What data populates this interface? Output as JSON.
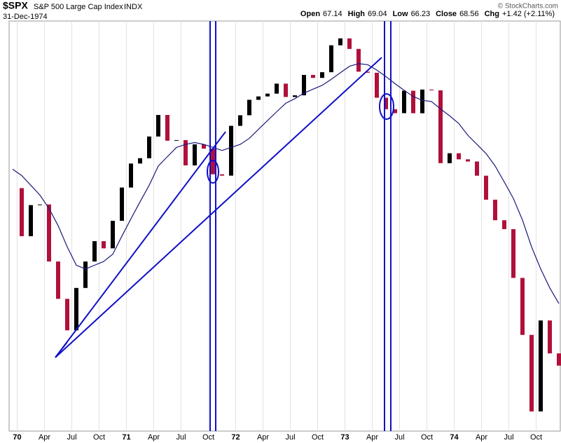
{
  "header": {
    "symbol": "$SPX",
    "name": "S&P 500 Large Cap Index",
    "exchange": "INDX",
    "date": "31-Dec-1974",
    "copyright": "© StockCharts.com",
    "quote": [
      {
        "label": "Open",
        "value": "67.14"
      },
      {
        "label": "High",
        "value": "69.04"
      },
      {
        "label": "Low",
        "value": "66.23"
      },
      {
        "label": "Close",
        "value": "68.56"
      },
      {
        "label": "Chg",
        "value": "+1.42 (+2.11%)"
      }
    ]
  },
  "chart_data": {
    "type": "candle",
    "log": true,
    "ylim": [
      61.5,
      121.5
    ],
    "grid": true,
    "categories": [
      null,
      "70",
      null,
      null,
      "Apr",
      null,
      null,
      "Jul",
      null,
      null,
      "Oct",
      null,
      null,
      "71",
      null,
      null,
      "Apr",
      null,
      null,
      "Jul",
      null,
      null,
      "Oct",
      null,
      null,
      "72",
      null,
      null,
      "Apr",
      null,
      null,
      "Jul",
      null,
      null,
      "Oct",
      null,
      null,
      "73",
      null,
      null,
      "Apr",
      null,
      null,
      "Jul",
      null,
      null,
      "Oct",
      null,
      null,
      "74",
      null,
      null,
      "Apr",
      null,
      null,
      "Jul",
      null,
      null,
      "Oct",
      null,
      null
    ],
    "series": [
      {
        "name": "SPX",
        "up_color": "#000000",
        "down_color": "#b0103a",
        "values": [
          92.06,
          85.0,
          89.5,
          89.6,
          81.5,
          76.6,
          72.7,
          78.0,
          81.5,
          84.3,
          83.3,
          87.2,
          92.15,
          95.9,
          96.75,
          100.3,
          103.95,
          99.6,
          99.7,
          95.6,
          99.0,
          98.3,
          94.2,
          93.99,
          102.09,
          103.9,
          106.6,
          107.2,
          107.7,
          109.5,
          107.1,
          107.4,
          111.1,
          110.55,
          111.6,
          116.7,
          118.05,
          116.0,
          111.7,
          111.5,
          106.97,
          104.95,
          104.26,
          108.22,
          104.25,
          108.43,
          108.29,
          95.96,
          97.55,
          96.57,
          96.22,
          93.98,
          90.31,
          87.28,
          86.0,
          79.31,
          72.15,
          63.54,
          73.9,
          69.97,
          68.56
        ]
      },
      {
        "name": "MA",
        "color": "#1a1a7a",
        "values": [
          95,
          94,
          92.5,
          91,
          89,
          86.5,
          83.5,
          81,
          80.5,
          81,
          81.5,
          82.5,
          85,
          87.5,
          90,
          92.5,
          95.5,
          97,
          98.5,
          99,
          99.3,
          99,
          98.5,
          98,
          98.5,
          99,
          100,
          101.5,
          103,
          104.5,
          106,
          106.8,
          107.8,
          108.5,
          109.2,
          110.3,
          111.5,
          112.7,
          113.2,
          113,
          112,
          110.8,
          109.5,
          108.3,
          107.2,
          106.5,
          106.3,
          105,
          103.8,
          102.5,
          100.5,
          99,
          97.5,
          95.5,
          93,
          90.5,
          87.3,
          83.5,
          80.5,
          78,
          76
        ]
      }
    ]
  }
}
